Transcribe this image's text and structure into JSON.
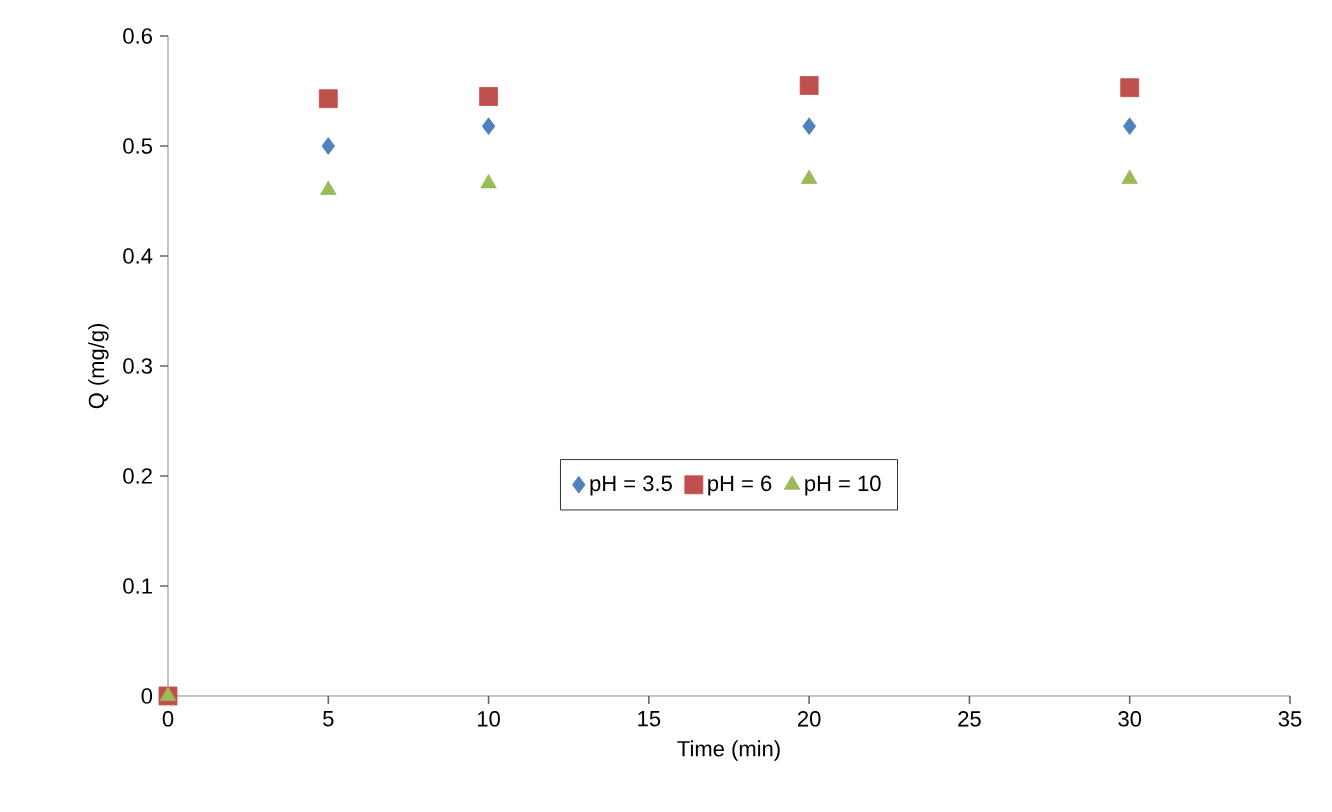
{
  "chart_data": {
    "type": "scatter",
    "xlabel": "Time (min)",
    "ylabel": "Q (mg/g)",
    "x": [
      0,
      5,
      10,
      20,
      30
    ],
    "series": [
      {
        "name": "pH = 3.5",
        "color": "#4f81bd",
        "marker": "diamond",
        "values": [
          null,
          0.5,
          0.518,
          0.518,
          0.518
        ]
      },
      {
        "name": "pH = 6",
        "color": "#c0504d",
        "marker": "square",
        "values": [
          0,
          0.543,
          0.545,
          0.555,
          0.553
        ]
      },
      {
        "name": "pH = 10",
        "color": "#9bbb59",
        "marker": "triangle",
        "values": [
          0,
          0.46,
          0.466,
          0.47,
          0.47
        ]
      }
    ],
    "xlim": [
      0,
      35
    ],
    "xticks": [
      0,
      5,
      10,
      15,
      20,
      25,
      30,
      35
    ],
    "ylim": [
      0,
      0.6
    ],
    "yticks": [
      0,
      0.1,
      0.2,
      0.3,
      0.4,
      0.5,
      0.6
    ],
    "grid": false,
    "legend": "center"
  }
}
